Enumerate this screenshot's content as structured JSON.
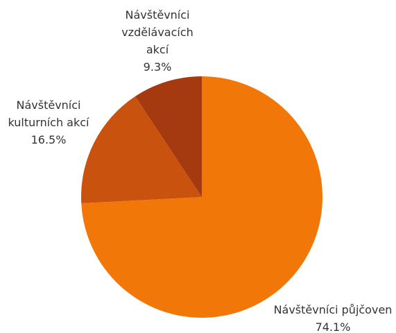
{
  "chart_data": {
    "type": "pie",
    "categories": [
      "Návštěvníci půjčoven",
      "Návštěvníci kulturních akcí",
      "Návštěvníci vzdělávacích akcí"
    ],
    "values": [
      74.1,
      16.5,
      9.3
    ],
    "value_labels": [
      "74.1%",
      "16.5%",
      "9.3%"
    ],
    "colors": [
      "#f07708",
      "#c9520f",
      "#a53a10"
    ]
  }
}
